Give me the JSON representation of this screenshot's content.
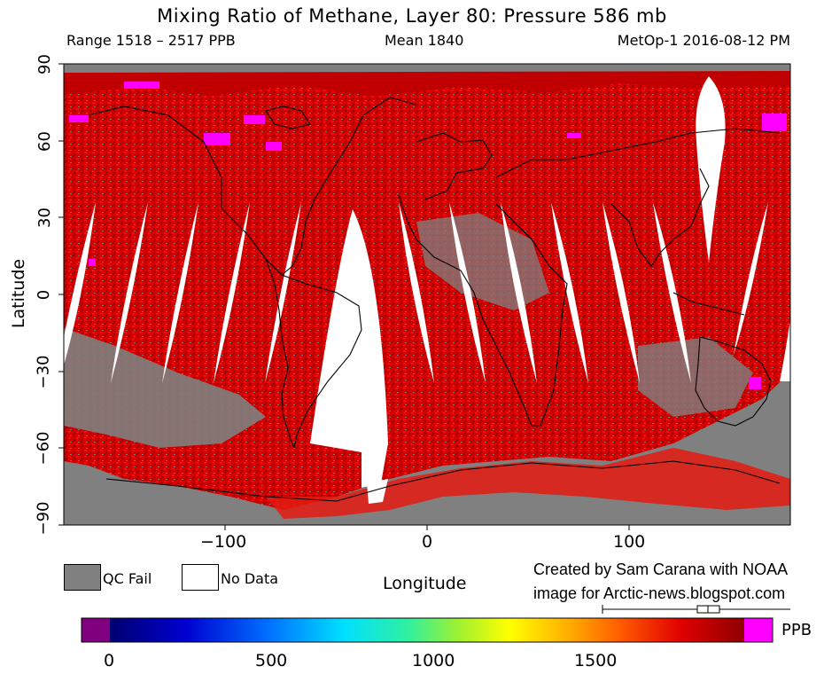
{
  "header": {
    "title": "Mixing Ratio of Methane, Layer 80: Pressure 586 mb",
    "range": "Range 1518 – 2517 PPB",
    "mean": "Mean 1840",
    "satellite_date": "MetOp-1 2016-08-12 PM"
  },
  "map": {
    "ylabel": "Latitude",
    "xlabel": "Longitude",
    "x_ticks": [
      "−100",
      "0",
      "100"
    ],
    "y_ticks": [
      "90",
      "60",
      "30",
      "0",
      "−30",
      "−60",
      "−90"
    ],
    "lon_range": [
      -180,
      180
    ],
    "lat_range": [
      -90,
      90
    ],
    "colors": {
      "qc_fail": "#808080",
      "no_data": "#ffffff",
      "high_methane": "#d80000",
      "peak_methane": "#ff00ff"
    }
  },
  "legend": {
    "qc_fail_label": "QC Fail",
    "no_data_label": "No Data"
  },
  "credit": {
    "line1": "Created by Sam Carana with NOAA",
    "line2": "image for Arctic-news.blogspot.com"
  },
  "colorbar": {
    "unit": "PPB",
    "ticks": [
      "0",
      "500",
      "1000",
      "1500"
    ],
    "min": 0,
    "max": 2000
  }
}
